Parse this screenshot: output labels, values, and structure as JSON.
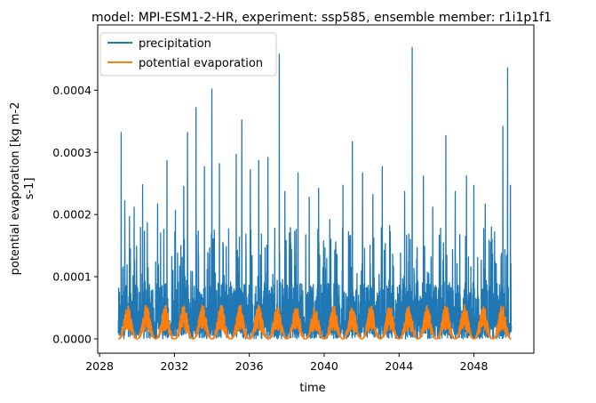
{
  "chart_data": {
    "type": "line",
    "title": "model: MPI-ESM1-2-HR, experiment: ssp585, ensemble member: r1i1p1f1",
    "xlabel": "time",
    "ylabel_lines": [
      "potential evaporation [kg m-2",
      "s-1]"
    ],
    "xlim": [
      2027.9,
      2051.2
    ],
    "ylim": [
      -2.3e-05,
      0.000505
    ],
    "x_ticks": [
      2028,
      2032,
      2036,
      2040,
      2044,
      2048
    ],
    "x_tick_labels": [
      "2028",
      "2032",
      "2036",
      "2040",
      "2044",
      "2048"
    ],
    "y_ticks": [
      0.0,
      0.0001,
      0.0002,
      0.0003,
      0.0004
    ],
    "y_tick_labels": [
      "0.0000",
      "0.0001",
      "0.0002",
      "0.0003",
      "0.0004"
    ],
    "legend_position": "top-left",
    "series": [
      {
        "name": "precipitation",
        "color": "#1f77b4",
        "x_start": 2029.0,
        "x_end": 2050.0,
        "typical_max": 9e-05,
        "peaks": [
          [
            2029.15,
            0.000332
          ],
          [
            2029.35,
            0.000222
          ],
          [
            2029.6,
            0.000197
          ],
          [
            2029.85,
            0.000212
          ],
          [
            2030.3,
            0.000248
          ],
          [
            2030.55,
            0.000187
          ],
          [
            2031.1,
            0.000217
          ],
          [
            2031.6,
            0.000287
          ],
          [
            2032.05,
            0.000207
          ],
          [
            2032.5,
            0.000245
          ],
          [
            2032.7,
            0.000332
          ],
          [
            2033.15,
            0.000372
          ],
          [
            2033.6,
            0.000277
          ],
          [
            2034.0,
            0.000402
          ],
          [
            2034.4,
            0.000282
          ],
          [
            2034.9,
            0.000177
          ],
          [
            2035.3,
            0.000297
          ],
          [
            2035.6,
            0.000352
          ],
          [
            2036.05,
            0.000272
          ],
          [
            2036.5,
            0.000287
          ],
          [
            2037.0,
            0.000292
          ],
          [
            2037.6,
            0.000458
          ],
          [
            2037.9,
            0.000237
          ],
          [
            2038.6,
            0.000267
          ],
          [
            2039.2,
            0.000228
          ],
          [
            2039.7,
            0.000242
          ],
          [
            2040.3,
            0.000192
          ],
          [
            2041.0,
            0.000247
          ],
          [
            2041.5,
            0.000317
          ],
          [
            2042.05,
            0.000267
          ],
          [
            2042.6,
            0.000232
          ],
          [
            2043.1,
            0.000277
          ],
          [
            2043.5,
            0.000182
          ],
          [
            2044.3,
            0.000237
          ],
          [
            2044.7,
            0.000469
          ],
          [
            2045.3,
            0.000262
          ],
          [
            2045.8,
            0.000212
          ],
          [
            2046.5,
            0.000327
          ],
          [
            2047.0,
            0.000237
          ],
          [
            2047.6,
            0.000262
          ],
          [
            2048.0,
            0.000247
          ],
          [
            2048.6,
            0.000217
          ],
          [
            2049.1,
            0.000172
          ],
          [
            2049.55,
            0.000342
          ],
          [
            2049.8,
            0.000436
          ],
          [
            2049.95,
            0.000247
          ]
        ]
      },
      {
        "name": "potential evaporation",
        "color": "#ff7f0e",
        "x_start": 2029.0,
        "x_end": 2050.0,
        "seasonal_min": 0.0,
        "seasonal_max": 5.5e-05,
        "period_years": 1
      }
    ]
  }
}
